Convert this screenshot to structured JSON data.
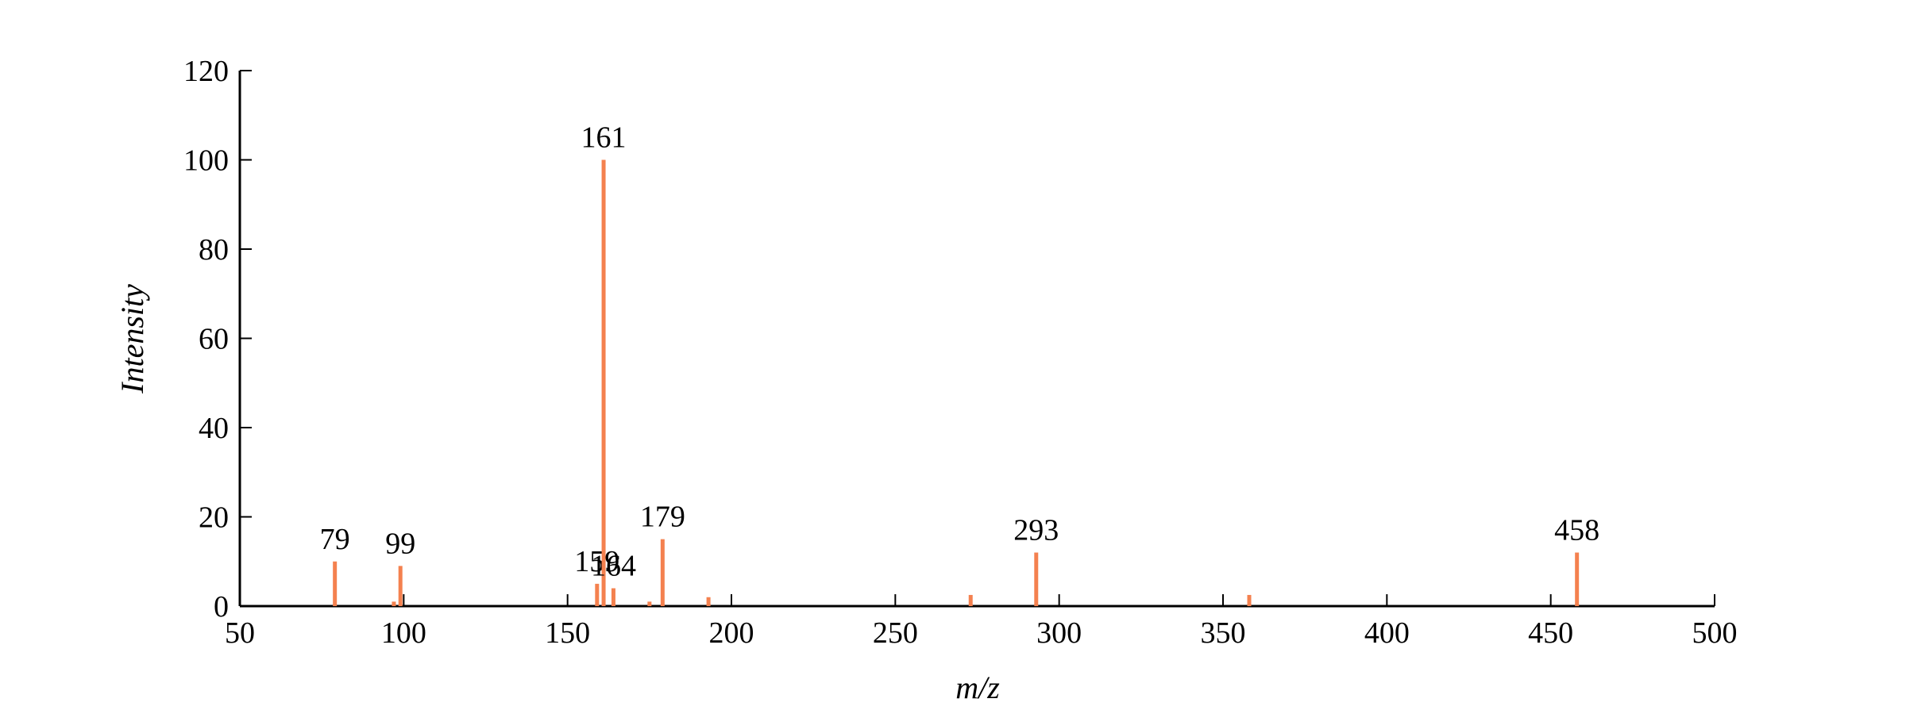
{
  "chart_data": {
    "type": "stem",
    "x_label": "m/z",
    "y_label": "Intensity",
    "x": [
      79,
      97,
      99,
      159,
      161,
      164,
      175,
      179,
      193,
      273,
      293,
      358,
      458
    ],
    "values": [
      10,
      1,
      9,
      5,
      100,
      4,
      1,
      15,
      2,
      2.5,
      12,
      2.5,
      12
    ],
    "peak_labels": [
      "79",
      null,
      "99",
      "159",
      "161",
      "164",
      null,
      "179",
      null,
      null,
      "293",
      null,
      "458"
    ],
    "color": "#f4814f",
    "xlim": [
      50,
      500
    ],
    "xticks": [
      50,
      100,
      150,
      200,
      250,
      300,
      350,
      400,
      450,
      500
    ],
    "ylim": [
      0,
      120
    ],
    "yticks": [
      0,
      20,
      40,
      60,
      80,
      100,
      120
    ],
    "grid": false
  }
}
